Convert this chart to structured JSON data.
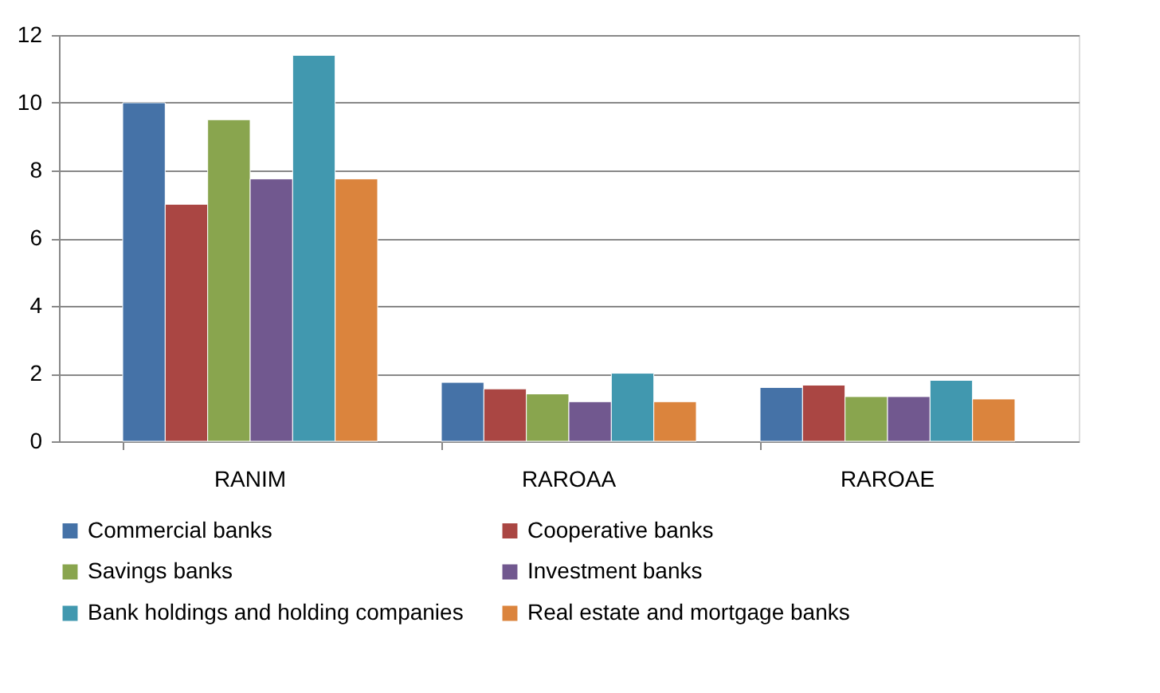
{
  "chart_data": {
    "type": "bar",
    "categories": [
      "RANIM",
      "RAROAA",
      "RAROAE"
    ],
    "series": [
      {
        "name": "Commercial banks",
        "color": "#4572a7",
        "values": [
          10,
          1.74,
          1.59
        ]
      },
      {
        "name": "Cooperative banks",
        "color": "#aa4643",
        "values": [
          7,
          1.55,
          1.66
        ]
      },
      {
        "name": "Savings banks",
        "color": "#89a54e",
        "values": [
          9.5,
          1.4,
          1.32
        ]
      },
      {
        "name": "Investment banks",
        "color": "#71588f",
        "values": [
          7.75,
          1.17,
          1.32
        ]
      },
      {
        "name": "Bank holdings and holding companies",
        "color": "#4198af",
        "values": [
          11.4,
          2.01,
          1.8
        ]
      },
      {
        "name": "Real estate and mortgage banks",
        "color": "#db843d",
        "values": [
          7.75,
          1.17,
          1.25
        ]
      }
    ],
    "ylim": [
      0,
      12
    ],
    "yticks": [
      0,
      2,
      4,
      6,
      8,
      10,
      12
    ],
    "grid": "y",
    "legend": "bottom"
  }
}
